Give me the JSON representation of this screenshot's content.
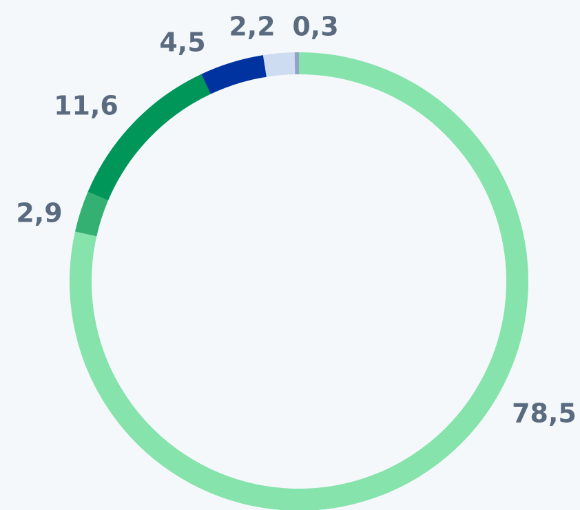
{
  "chart_data": {
    "type": "donut",
    "categories": [
      null,
      null,
      null,
      null,
      null,
      null
    ],
    "values": [
      78.5,
      2.9,
      11.6,
      4.5,
      2.2,
      0.3
    ],
    "value_labels": [
      "78,5",
      "2,9",
      "11,6",
      "4,5",
      "2,2",
      "0,3"
    ],
    "colors": [
      "#86e3ab",
      "#34b073",
      "#00965a",
      "#0033a0",
      "#cddcf0",
      "#8ea5c8"
    ]
  }
}
